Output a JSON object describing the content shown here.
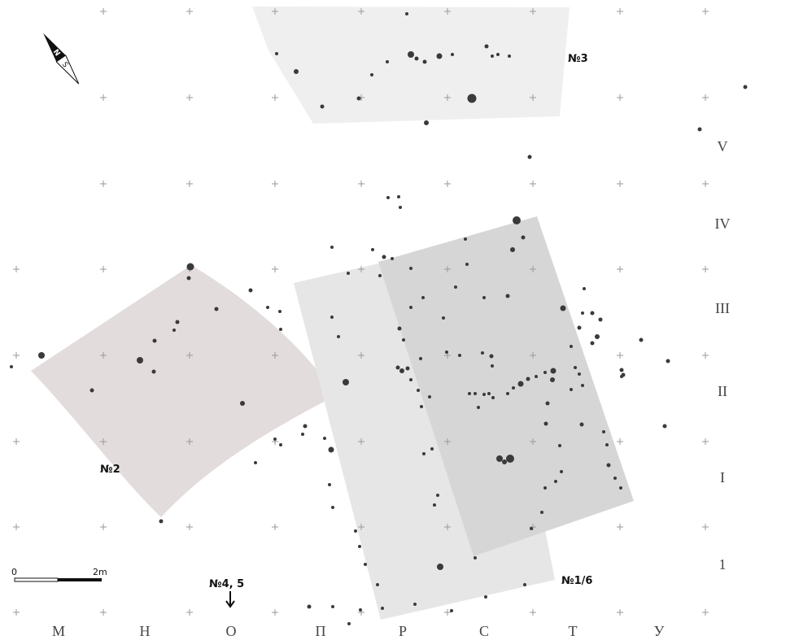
{
  "map": {
    "compass": {
      "north": "N",
      "south": "S"
    },
    "scale": {
      "start": "0",
      "end": "2m"
    },
    "areas": [
      {
        "label": "№3"
      },
      {
        "label": "№2"
      },
      {
        "label": "№1/6"
      },
      {
        "label": "№4, 5"
      }
    ],
    "rows": [
      "V",
      "IV",
      "III",
      "II",
      "I",
      "1"
    ],
    "columns": [
      "М",
      "Н",
      "О",
      "П",
      "Р",
      "С",
      "Т",
      "У"
    ]
  }
}
